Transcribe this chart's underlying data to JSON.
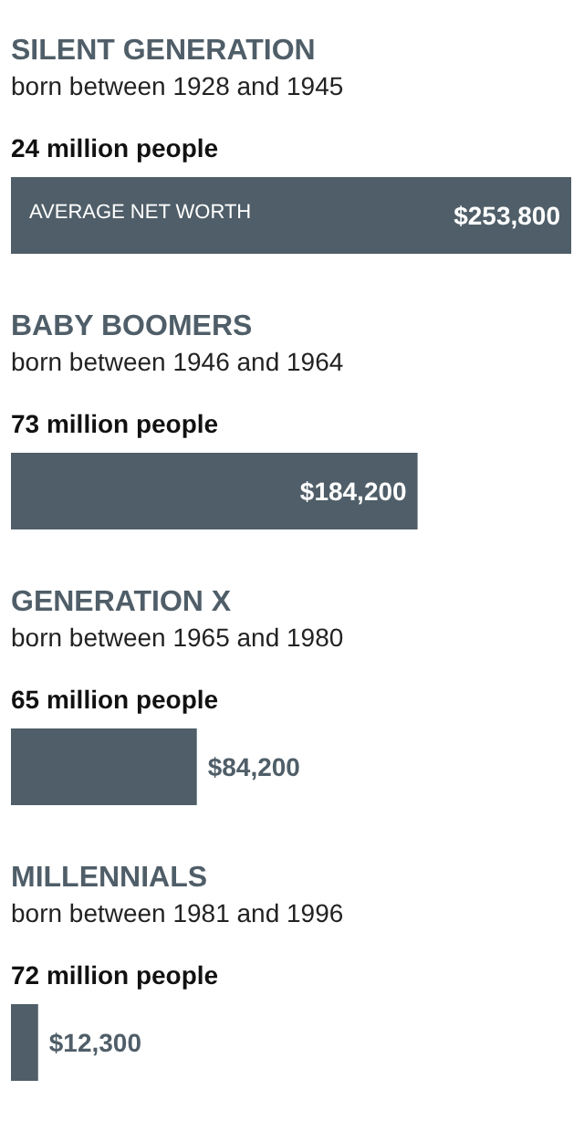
{
  "chart_data": {
    "type": "bar",
    "orientation": "horizontal",
    "categories": [
      "SILENT GENERATION",
      "BABY BOOMERS",
      "GENERATION X",
      "MILLENNIALS"
    ],
    "values": [
      253800,
      184200,
      84200,
      12300
    ],
    "value_labels": [
      "$253,800",
      "$184,200",
      "$84,200",
      "$12,300"
    ],
    "color": "#4f5e68",
    "annotations": [
      "born between 1928 and 1945",
      "24 million people",
      "born between 1946 and 1964",
      "73 million people",
      "born between 1965 and 1980",
      "65 million people",
      "born between 1981 and 1996",
      "72 million people",
      "AVERAGE NET WORTH"
    ]
  }
}
